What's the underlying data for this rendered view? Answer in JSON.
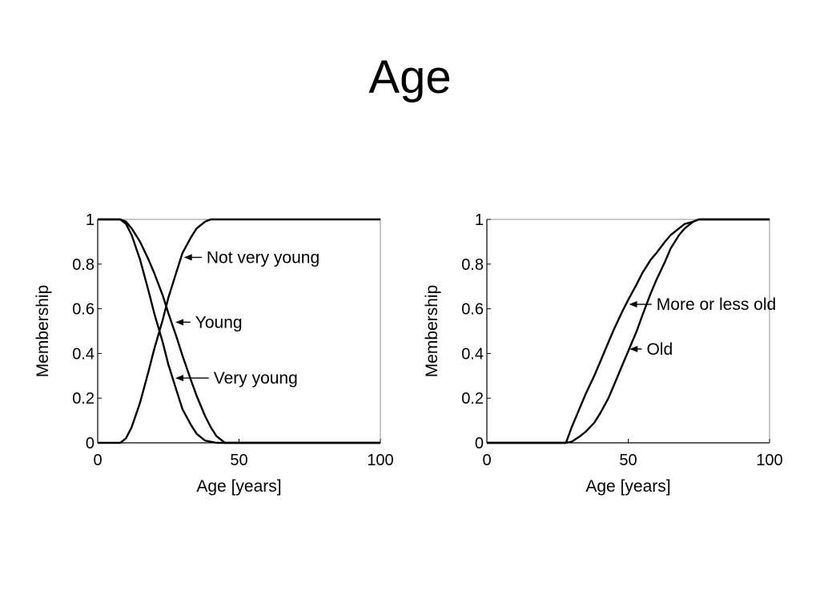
{
  "slide": {
    "title": "Age"
  },
  "chart_data": [
    {
      "type": "line",
      "xlabel": "Age [years]",
      "ylabel": "Membership",
      "xlim": [
        0,
        100
      ],
      "ylim": [
        0,
        1
      ],
      "xticks": [
        "0",
        "50",
        "100"
      ],
      "yticks": [
        "0",
        "0.2",
        "0.4",
        "0.6",
        "0.8",
        "1"
      ],
      "grid": false,
      "series": [
        {
          "name": "Young",
          "x": [
            0,
            8,
            10,
            12,
            15,
            18,
            20,
            23,
            25,
            28,
            30,
            33,
            35,
            38,
            40,
            42,
            45,
            100
          ],
          "y": [
            1,
            1,
            0.99,
            0.96,
            0.9,
            0.82,
            0.76,
            0.66,
            0.58,
            0.47,
            0.39,
            0.28,
            0.21,
            0.12,
            0.07,
            0.03,
            0,
            0
          ]
        },
        {
          "name": "Very young",
          "x": [
            0,
            8,
            10,
            12,
            15,
            18,
            20,
            23,
            25,
            28,
            30,
            33,
            35,
            38,
            40,
            42,
            100
          ],
          "y": [
            1,
            1,
            0.98,
            0.93,
            0.82,
            0.68,
            0.58,
            0.45,
            0.35,
            0.23,
            0.15,
            0.08,
            0.04,
            0.01,
            0.005,
            0,
            0
          ]
        },
        {
          "name": "Not very young",
          "x": [
            0,
            8,
            10,
            12,
            15,
            18,
            20,
            23,
            25,
            28,
            30,
            33,
            35,
            38,
            40,
            42,
            100
          ],
          "y": [
            0,
            0,
            0.02,
            0.07,
            0.18,
            0.32,
            0.42,
            0.55,
            0.65,
            0.77,
            0.85,
            0.92,
            0.96,
            0.99,
            1,
            1,
            1
          ]
        }
      ],
      "annotations": [
        {
          "text": "Not very young",
          "x": 38.5,
          "y": 0.83,
          "point_x": 30.5,
          "point_y": 0.83
        },
        {
          "text": "Young",
          "x": 34.5,
          "y": 0.54,
          "point_x": 27.5,
          "point_y": 0.54
        },
        {
          "text": "Very young",
          "x": 41,
          "y": 0.29,
          "point_x": 27.5,
          "point_y": 0.29
        }
      ]
    },
    {
      "type": "line",
      "xlabel": "Age [years]",
      "ylabel": "Membership",
      "xlim": [
        0,
        100
      ],
      "ylim": [
        0,
        1
      ],
      "xticks": [
        "0",
        "50",
        "100"
      ],
      "yticks": [
        "0",
        "0.2",
        "0.4",
        "0.6",
        "0.8",
        "1"
      ],
      "grid": false,
      "series": [
        {
          "name": "More or less old",
          "x": [
            0,
            28,
            30,
            32,
            35,
            38,
            40,
            43,
            45,
            48,
            50,
            53,
            55,
            58,
            60,
            63,
            65,
            68,
            70,
            73,
            75,
            100
          ],
          "y": [
            0,
            0,
            0.07,
            0.13,
            0.22,
            0.3,
            0.36,
            0.45,
            0.51,
            0.59,
            0.64,
            0.71,
            0.76,
            0.82,
            0.85,
            0.9,
            0.93,
            0.96,
            0.98,
            0.99,
            1,
            1
          ]
        },
        {
          "name": "Old",
          "x": [
            0,
            28,
            30,
            33,
            35,
            38,
            40,
            43,
            45,
            48,
            50,
            53,
            55,
            58,
            60,
            63,
            65,
            68,
            70,
            73,
            75,
            100
          ],
          "y": [
            0,
            0,
            0.005,
            0.03,
            0.05,
            0.09,
            0.13,
            0.2,
            0.26,
            0.35,
            0.41,
            0.5,
            0.57,
            0.67,
            0.73,
            0.81,
            0.87,
            0.93,
            0.96,
            0.99,
            1,
            1
          ]
        }
      ],
      "annotations": [
        {
          "text": "More or less old",
          "x": 60,
          "y": 0.62,
          "point_x": 50.3,
          "point_y": 0.62
        },
        {
          "text": "Old",
          "x": 56.5,
          "y": 0.42,
          "point_x": 50.5,
          "point_y": 0.42
        }
      ]
    }
  ]
}
